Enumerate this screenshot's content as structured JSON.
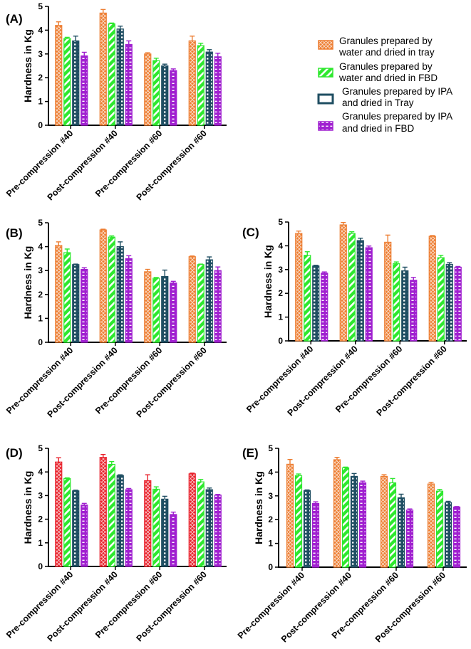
{
  "legend": [
    {
      "line1": "Granules prepared by",
      "line2": "water and dried in tray"
    },
    {
      "line1": "Granules prepared by",
      "line2": "water and dried in FBD"
    },
    {
      "line1": "Granules prepared by IPA",
      "line2": "and dried in Tray"
    },
    {
      "line1": "Granules prepared by IPA",
      "line2": "and dried in FBD"
    }
  ],
  "colors": {
    "series_panelA": [
      "#ED7D31",
      "#2EE82E",
      "#1F4E62",
      "#A020D0"
    ],
    "series_panelD": [
      "#E8202A",
      "#2EE82E",
      "#1F4E62",
      "#A020D0"
    ]
  },
  "chart_data": [
    {
      "type": "bar",
      "panel": "(A)",
      "categories": [
        "Pre-compression #40",
        "Post-compression #40",
        "Pre-compression #60",
        "Post-compression #60"
      ],
      "ylabel": "Hardness in Kg",
      "ylim": [
        0,
        5
      ],
      "yticks": [
        "0",
        "1",
        "2",
        "3",
        "4",
        "5"
      ],
      "series": [
        {
          "name": "Granules prepared by water and dried in tray",
          "values": [
            4.2,
            4.72,
            3.0,
            3.55
          ],
          "errors": [
            0.15,
            0.15,
            0.05,
            0.2
          ]
        },
        {
          "name": "Granules prepared by water and dried in FBD",
          "values": [
            3.65,
            4.27,
            2.72,
            3.35
          ],
          "errors": [
            0.05,
            0.03,
            0.1,
            0.1
          ]
        },
        {
          "name": "Granules prepared by IPA and dried in Tray",
          "values": [
            3.55,
            4.05,
            2.5,
            3.08
          ],
          "errors": [
            0.2,
            0.12,
            0.07,
            0.1
          ]
        },
        {
          "name": "Granules prepared by IPA and dried in FBD",
          "values": [
            2.92,
            3.4,
            2.3,
            2.88
          ],
          "errors": [
            0.15,
            0.15,
            0.07,
            0.15
          ]
        }
      ]
    },
    {
      "type": "bar",
      "panel": "(B)",
      "categories": [
        "Pre-compression #40",
        "Post-compression #40",
        "Pre-compression #60",
        "Post-compression #60"
      ],
      "ylabel": "Hardness in Kg",
      "ylim": [
        0,
        5
      ],
      "yticks": [
        "0",
        "1",
        "2",
        "3",
        "4",
        "5"
      ],
      "series": [
        {
          "name": "Granules prepared by water and dried in tray",
          "values": [
            4.05,
            4.7,
            2.95,
            3.58
          ],
          "errors": [
            0.15,
            0.03,
            0.1,
            0.03
          ]
        },
        {
          "name": "Granules prepared by water and dried in FBD",
          "values": [
            3.75,
            4.4,
            2.68,
            3.25
          ],
          "errors": [
            0.15,
            0.05,
            0.03,
            0.02
          ]
        },
        {
          "name": "Granules prepared by IPA and dried in Tray",
          "values": [
            3.25,
            4.0,
            2.75,
            3.45
          ],
          "errors": [
            0.02,
            0.2,
            0.27,
            0.12
          ]
        },
        {
          "name": "Granules prepared by IPA and dried in FBD",
          "values": [
            3.05,
            3.5,
            2.48,
            3.0
          ],
          "errors": [
            0.07,
            0.12,
            0.07,
            0.15
          ]
        }
      ]
    },
    {
      "type": "bar",
      "panel": "(C)",
      "categories": [
        "Pre-compression #40",
        "Post-compression #40",
        "Pre-compression #60",
        "Post-compression #60"
      ],
      "ylabel": "Hardness in Kg",
      "ylim": [
        0,
        5
      ],
      "yticks": [
        "0",
        "1",
        "2",
        "3",
        "4",
        "5"
      ],
      "series": [
        {
          "name": "Granules prepared by water and dried in tray",
          "values": [
            4.52,
            4.88,
            4.15,
            4.4
          ],
          "errors": [
            0.1,
            0.1,
            0.3,
            0.03
          ]
        },
        {
          "name": "Granules prepared by water and dried in FBD",
          "values": [
            3.6,
            4.52,
            3.25,
            3.5
          ],
          "errors": [
            0.15,
            0.07,
            0.07,
            0.1
          ]
        },
        {
          "name": "Granules prepared by IPA and dried in Tray",
          "values": [
            3.15,
            4.22,
            2.95,
            3.22
          ],
          "errors": [
            0.03,
            0.1,
            0.15,
            0.07
          ]
        },
        {
          "name": "Granules prepared by IPA and dried in FBD",
          "values": [
            2.85,
            3.92,
            2.55,
            3.1
          ],
          "errors": [
            0.05,
            0.07,
            0.12,
            0.03
          ]
        }
      ]
    },
    {
      "type": "bar",
      "panel": "(D)",
      "categories": [
        "Pre-compression #40",
        "Post-compression #40",
        "Pre-compression #60",
        "Post-compression #60"
      ],
      "ylabel": "Hardness in Kg",
      "ylim": [
        0,
        5
      ],
      "yticks": [
        "0",
        "1",
        "2",
        "3",
        "4",
        "5"
      ],
      "series": [
        {
          "name": "Granules prepared by water and dried in tray",
          "values": [
            4.42,
            4.62,
            3.63,
            3.92
          ],
          "errors": [
            0.18,
            0.12,
            0.25,
            0.03
          ]
        },
        {
          "name": "Granules prepared by water and dried in FBD",
          "values": [
            3.72,
            4.32,
            3.27,
            3.58
          ],
          "errors": [
            0.03,
            0.12,
            0.1,
            0.1
          ]
        },
        {
          "name": "Granules prepared by IPA and dried in Tray",
          "values": [
            3.2,
            3.85,
            2.85,
            3.25
          ],
          "errors": [
            0.03,
            0.03,
            0.12,
            0.07
          ]
        },
        {
          "name": "Granules prepared by IPA and dried in FBD",
          "values": [
            2.6,
            3.25,
            2.2,
            3.02
          ],
          "errors": [
            0.07,
            0.05,
            0.1,
            0.03
          ]
        }
      ]
    },
    {
      "type": "bar",
      "panel": "(E)",
      "categories": [
        "Pre-compression #40",
        "Post-compression #40",
        "Pre-compression #60",
        "Post-compression #60"
      ],
      "ylabel": "Hardness in Kg",
      "ylim": [
        0,
        5
      ],
      "yticks": [
        "0",
        "1",
        "2",
        "3",
        "4",
        "5"
      ],
      "series": [
        {
          "name": "Granules prepared by water and dried in tray",
          "values": [
            4.33,
            4.52,
            3.82,
            3.5
          ],
          "errors": [
            0.2,
            0.1,
            0.07,
            0.07
          ]
        },
        {
          "name": "Granules prepared by water and dried in FBD",
          "values": [
            3.85,
            4.18,
            3.55,
            3.2
          ],
          "errors": [
            0.07,
            0.03,
            0.18,
            0.07
          ]
        },
        {
          "name": "Granules prepared by IPA and dried in Tray",
          "values": [
            3.22,
            3.82,
            2.92,
            2.72
          ],
          "errors": [
            0.03,
            0.12,
            0.15,
            0.05
          ]
        },
        {
          "name": "Granules prepared by IPA and dried in FBD",
          "values": [
            2.68,
            3.55,
            2.4,
            2.53
          ],
          "errors": [
            0.07,
            0.07,
            0.05,
            0.02
          ]
        }
      ]
    }
  ]
}
